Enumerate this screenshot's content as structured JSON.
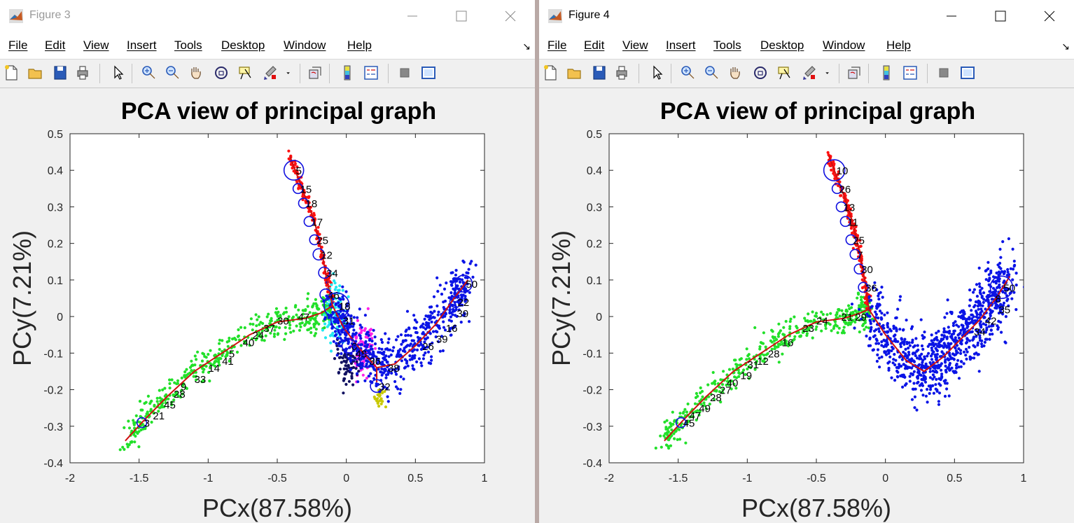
{
  "menus": [
    "File",
    "Edit",
    "View",
    "Insert",
    "Tools",
    "Desktop",
    "Window",
    "Help"
  ],
  "dock_glyph": "↘",
  "colors": {
    "green": "#22e02a",
    "red": "#ff1010",
    "cyan": "#22e8f0",
    "magenta": "#ff22e8",
    "navy": "#101060",
    "yellow": "#c8c800",
    "blue": "#0a14e6",
    "graph": "#d01010",
    "node": "#1010e0"
  },
  "windows": [
    {
      "title": "Figure 3",
      "active": false,
      "toolbar_icons": [
        "new-figure-icon",
        "open-file-icon",
        "save-icon",
        "print-icon",
        "pointer-icon",
        "zoom-in-icon",
        "zoom-out-icon",
        "pan-hand-icon",
        "rotate-3d-icon",
        "data-cursor-icon",
        "brush-icon",
        "brush-dropdown-icon",
        "link-plot-icon",
        "colorbar-icon",
        "legend-icon",
        "hide-plot-tools-icon",
        "show-plot-tools-icon"
      ],
      "chart_data": {
        "type": "scatter",
        "title": "PCA view of principal graph",
        "xlabel": "PCx(87.58%)",
        "ylabel": "PCy(7.21%)",
        "xlim": [
          -2,
          1
        ],
        "ylim": [
          -0.4,
          0.5
        ],
        "xticks": [
          "-2",
          "-1.5",
          "-1",
          "-0.5",
          "0",
          "0.5",
          "1"
        ],
        "yticks": [
          "-0.4",
          "-0.3",
          "-0.2",
          "-0.1",
          "0",
          "0.1",
          "0.2",
          "0.3",
          "0.4",
          "0.5"
        ],
        "graph_path": [
          [
            -1.6,
            -0.34
          ],
          [
            -1.48,
            -0.29
          ],
          [
            -1.3,
            -0.22
          ],
          [
            -1.1,
            -0.15
          ],
          [
            -0.9,
            -0.1
          ],
          [
            -0.7,
            -0.05
          ],
          [
            -0.5,
            -0.015
          ],
          [
            -0.3,
            -0.005
          ],
          [
            -0.18,
            0.01
          ],
          [
            -0.1,
            0.03
          ]
        ],
        "branch_up": [
          [
            -0.1,
            0.03
          ],
          [
            -0.14,
            0.1
          ],
          [
            -0.18,
            0.18
          ],
          [
            -0.23,
            0.26
          ],
          [
            -0.3,
            0.33
          ],
          [
            -0.36,
            0.39
          ],
          [
            -0.41,
            0.44
          ]
        ],
        "branch_right": [
          [
            -0.1,
            0.03
          ],
          [
            -0.02,
            -0.03
          ],
          [
            0.1,
            -0.09
          ],
          [
            0.22,
            -0.14
          ],
          [
            0.35,
            -0.13
          ],
          [
            0.5,
            -0.08
          ],
          [
            0.65,
            -0.02
          ],
          [
            0.78,
            0.05
          ],
          [
            0.88,
            0.1
          ]
        ],
        "branch_down": [
          [
            0.22,
            -0.14
          ],
          [
            0.22,
            -0.18
          ]
        ],
        "nodes": [
          {
            "x": -0.38,
            "y": 0.4,
            "r": 14,
            "l": "5"
          },
          {
            "x": -0.35,
            "y": 0.35,
            "r": 7,
            "l": "15"
          },
          {
            "x": -0.31,
            "y": 0.31,
            "r": 7,
            "l": "18"
          },
          {
            "x": -0.27,
            "y": 0.26,
            "r": 7,
            "l": "17"
          },
          {
            "x": -0.23,
            "y": 0.21,
            "r": 7,
            "l": "25"
          },
          {
            "x": -0.2,
            "y": 0.17,
            "r": 8,
            "l": "12"
          },
          {
            "x": -0.16,
            "y": 0.12,
            "r": 8,
            "l": "34"
          },
          {
            "x": -0.15,
            "y": 0.06,
            "r": 8,
            "l": "46"
          },
          {
            "x": -0.07,
            "y": 0.03,
            "r": 18,
            "l": "18"
          },
          {
            "x": -0.04,
            "y": -0.01,
            "r": 14,
            "l": "31"
          },
          {
            "x": 0.02,
            "y": -0.08,
            "r": 10,
            "l": "6"
          },
          {
            "x": 0.05,
            "y": -0.1,
            "r": 10,
            "l": "48"
          },
          {
            "x": 0.15,
            "y": -0.12,
            "r": 10,
            "l": "36"
          },
          {
            "x": 0.22,
            "y": -0.19,
            "r": 9,
            "l": "32"
          },
          {
            "x": 0.85,
            "y": 0.09,
            "r": 12,
            "l": "50"
          },
          {
            "x": 0.79,
            "y": 0.04,
            "r": 8,
            "l": "22"
          },
          {
            "x": -1.48,
            "y": -0.29,
            "r": 7,
            "l": "3"
          }
        ],
        "labels": [
          {
            "x": -1.4,
            "y": -0.27,
            "l": "21"
          },
          {
            "x": -1.32,
            "y": -0.24,
            "l": "45"
          },
          {
            "x": -1.25,
            "y": -0.21,
            "l": "28"
          },
          {
            "x": -1.2,
            "y": -0.19,
            "l": "9"
          },
          {
            "x": -1.1,
            "y": -0.17,
            "l": "33"
          },
          {
            "x": -1.0,
            "y": -0.14,
            "l": "14"
          },
          {
            "x": -0.9,
            "y": -0.12,
            "l": "41"
          },
          {
            "x": -0.85,
            "y": -0.1,
            "l": "5"
          },
          {
            "x": -0.75,
            "y": -0.07,
            "l": "40"
          },
          {
            "x": -0.68,
            "y": -0.05,
            "l": "24"
          },
          {
            "x": -0.6,
            "y": -0.03,
            "l": "37"
          },
          {
            "x": -0.5,
            "y": -0.01,
            "l": "30"
          },
          {
            "x": -0.35,
            "y": 0.0,
            "l": "47"
          },
          {
            "x": 0.55,
            "y": -0.08,
            "l": "26"
          },
          {
            "x": 0.65,
            "y": -0.06,
            "l": "39"
          },
          {
            "x": 0.72,
            "y": -0.03,
            "l": "16"
          },
          {
            "x": 0.8,
            "y": 0.01,
            "l": "39"
          },
          {
            "x": 0.3,
            "y": -0.14,
            "l": "38"
          }
        ],
        "clusters": [
          {
            "color": "green",
            "path": "graph_path",
            "n": 430,
            "spread": 0.022
          },
          {
            "color": "red",
            "path": "branch_up",
            "n": 150,
            "spread": 0.008
          },
          {
            "color": "cyan",
            "cx": -0.08,
            "cy": 0.0,
            "sx": 0.04,
            "sy": 0.04,
            "n": 90
          },
          {
            "color": "magenta",
            "cx": 0.12,
            "cy": -0.08,
            "sx": 0.04,
            "sy": 0.04,
            "n": 90
          },
          {
            "color": "navy",
            "cx": 0.02,
            "cy": -0.13,
            "sx": 0.04,
            "sy": 0.03,
            "n": 70
          },
          {
            "color": "yellow",
            "cx": 0.24,
            "cy": -0.22,
            "sx": 0.02,
            "sy": 0.015,
            "n": 25
          },
          {
            "color": "blue",
            "path": "branch_right",
            "n": 650,
            "spread": 0.035
          }
        ]
      }
    },
    {
      "title": "Figure 4",
      "active": true,
      "toolbar_icons": [
        "new-figure-icon",
        "open-file-icon",
        "save-icon",
        "print-icon",
        "pointer-icon",
        "zoom-in-icon",
        "zoom-out-icon",
        "pan-hand-icon",
        "rotate-3d-icon",
        "data-cursor-icon",
        "brush-icon",
        "brush-dropdown-icon",
        "link-plot-icon",
        "colorbar-icon",
        "legend-icon",
        "hide-plot-tools-icon",
        "show-plot-tools-icon"
      ],
      "chart_data": {
        "type": "scatter",
        "title": "PCA view of principal graph",
        "xlabel": "PCx(87.58%)",
        "ylabel": "PCy(7.21%)",
        "xlim": [
          -2,
          1
        ],
        "ylim": [
          -0.4,
          0.5
        ],
        "xticks": [
          "-2",
          "-1.5",
          "-1",
          "-0.5",
          "0",
          "0.5",
          "1"
        ],
        "yticks": [
          "-0.4",
          "-0.3",
          "-0.2",
          "-0.1",
          "0",
          "0.1",
          "0.2",
          "0.3",
          "0.4",
          "0.5"
        ],
        "graph_path": [
          [
            -1.6,
            -0.34
          ],
          [
            -1.48,
            -0.29
          ],
          [
            -1.3,
            -0.22
          ],
          [
            -1.1,
            -0.15
          ],
          [
            -0.9,
            -0.1
          ],
          [
            -0.7,
            -0.05
          ],
          [
            -0.5,
            -0.015
          ],
          [
            -0.3,
            -0.005
          ],
          [
            -0.18,
            0.01
          ],
          [
            -0.12,
            0.02
          ]
        ],
        "branch_up": [
          [
            -0.12,
            0.02
          ],
          [
            -0.15,
            0.1
          ],
          [
            -0.19,
            0.18
          ],
          [
            -0.24,
            0.26
          ],
          [
            -0.3,
            0.33
          ],
          [
            -0.36,
            0.39
          ],
          [
            -0.41,
            0.44
          ]
        ],
        "branch_right": [
          [
            -0.12,
            0.02
          ],
          [
            0.0,
            -0.05
          ],
          [
            0.15,
            -0.12
          ],
          [
            0.28,
            -0.15
          ],
          [
            0.42,
            -0.11
          ],
          [
            0.55,
            -0.06
          ],
          [
            0.68,
            -0.01
          ],
          [
            0.8,
            0.05
          ],
          [
            0.9,
            0.11
          ]
        ],
        "nodes": [
          {
            "x": -0.37,
            "y": 0.4,
            "r": 15,
            "l": "10"
          },
          {
            "x": -0.35,
            "y": 0.35,
            "r": 7,
            "l": "26"
          },
          {
            "x": -0.32,
            "y": 0.3,
            "r": 7,
            "l": "13"
          },
          {
            "x": -0.29,
            "y": 0.26,
            "r": 7,
            "l": "11"
          },
          {
            "x": -0.25,
            "y": 0.21,
            "r": 7,
            "l": "25"
          },
          {
            "x": -0.22,
            "y": 0.17,
            "r": 7,
            "l": "7"
          },
          {
            "x": -0.19,
            "y": 0.13,
            "r": 7,
            "l": "30"
          },
          {
            "x": -0.16,
            "y": 0.08,
            "r": 7,
            "l": "36"
          },
          {
            "x": 0.84,
            "y": 0.08,
            "r": 16,
            "l": "50"
          },
          {
            "x": 0.78,
            "y": 0.05,
            "r": 8,
            "l": "8"
          },
          {
            "x": -1.48,
            "y": -0.29,
            "r": 7,
            "l": "45"
          }
        ],
        "labels": [
          {
            "x": -1.42,
            "y": -0.27,
            "l": "47"
          },
          {
            "x": -1.35,
            "y": -0.25,
            "l": "49"
          },
          {
            "x": -1.27,
            "y": -0.22,
            "l": "28"
          },
          {
            "x": -1.2,
            "y": -0.2,
            "l": "27"
          },
          {
            "x": -1.15,
            "y": -0.18,
            "l": "40"
          },
          {
            "x": -1.05,
            "y": -0.16,
            "l": "19"
          },
          {
            "x": -1.0,
            "y": -0.13,
            "l": "31"
          },
          {
            "x": -0.93,
            "y": -0.12,
            "l": "12"
          },
          {
            "x": -0.85,
            "y": -0.1,
            "l": "28"
          },
          {
            "x": -0.75,
            "y": -0.07,
            "l": "16"
          },
          {
            "x": -0.6,
            "y": -0.03,
            "l": "23"
          },
          {
            "x": -0.5,
            "y": -0.01,
            "l": "24"
          },
          {
            "x": -0.32,
            "y": 0.0,
            "l": "21"
          },
          {
            "x": -0.22,
            "y": 0.0,
            "l": "29"
          },
          {
            "x": 0.72,
            "y": -0.01,
            "l": "42"
          },
          {
            "x": 0.64,
            "y": -0.04,
            "l": "34"
          },
          {
            "x": 0.82,
            "y": 0.02,
            "l": "35"
          }
        ],
        "clusters": [
          {
            "color": "green",
            "path": "graph_path",
            "n": 430,
            "spread": 0.022
          },
          {
            "color": "red",
            "path": "branch_up",
            "n": 170,
            "spread": 0.008
          },
          {
            "color": "blue",
            "path": "branch_right",
            "n": 900,
            "spread": 0.045
          }
        ]
      }
    }
  ]
}
